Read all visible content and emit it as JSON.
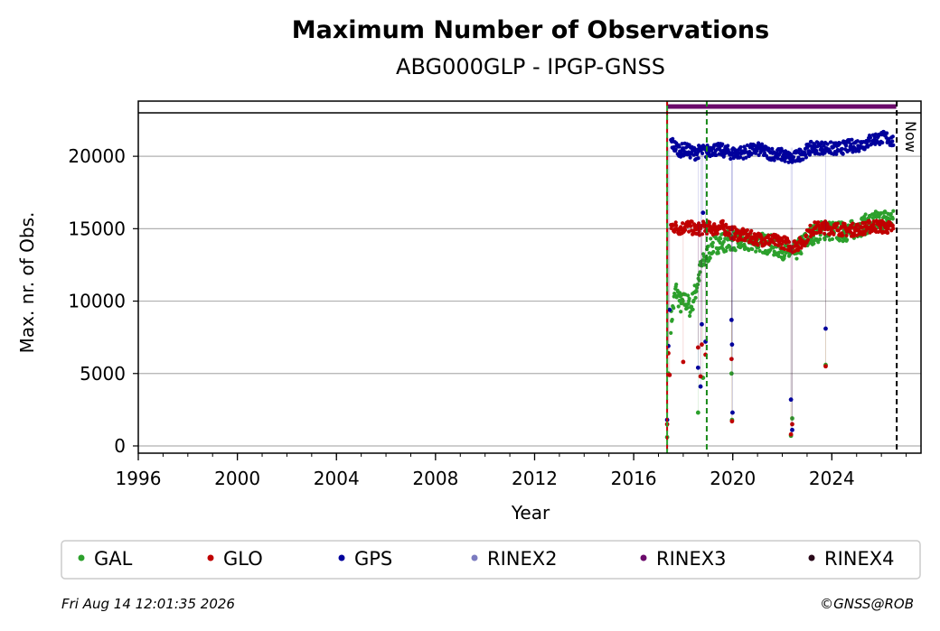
{
  "chart_data": {
    "type": "scatter",
    "title": "Maximum Number of Observations",
    "subtitle": "ABG000GLP - IPGP-GNSS",
    "xlabel": "Year",
    "ylabel": "Max. nr. of Obs.",
    "xlim": [
      1996,
      2027.6
    ],
    "ylim": [
      -500,
      23000
    ],
    "x_ticks": [
      1996,
      2000,
      2004,
      2008,
      2012,
      2016,
      2020,
      2024
    ],
    "y_ticks": [
      0,
      5000,
      10000,
      15000,
      20000
    ],
    "grid": "horizontal",
    "legend_position": "bottom",
    "markers": {
      "station_start": 2017.35,
      "equipment_change": 2018.95,
      "now": 2026.62,
      "now_label": "Now"
    },
    "rinex3_span": [
      2017.35,
      2026.6
    ],
    "series": [
      {
        "name": "GAL",
        "color": "#2ca02c",
        "x": [
          2017.35,
          2017.5,
          2017.7,
          2017.9,
          2018.1,
          2018.3,
          2018.5,
          2018.7,
          2018.9,
          2019.2,
          2019.6,
          2020.0,
          2020.5,
          2021.0,
          2021.5,
          2022.0,
          2022.4,
          2022.8,
          2023.2,
          2023.7,
          2024.2,
          2024.7,
          2025.2,
          2025.7,
          2026.2,
          2026.5
        ],
        "y": [
          600,
          8500,
          10800,
          9800,
          10000,
          9500,
          10700,
          12200,
          13000,
          13900,
          14100,
          14200,
          14000,
          14100,
          13900,
          13600,
          13200,
          13900,
          14600,
          14900,
          14800,
          14800,
          15200,
          15500,
          15700,
          15600
        ]
      },
      {
        "name": "GLO",
        "color": "#c00000",
        "x": [
          2017.35,
          2017.5,
          2017.7,
          2017.9,
          2018.1,
          2018.3,
          2018.5,
          2018.7,
          2018.9,
          2019.2,
          2019.6,
          2020.0,
          2020.5,
          2021.0,
          2021.5,
          2022.0,
          2022.4,
          2022.8,
          2023.2,
          2023.7,
          2024.2,
          2024.7,
          2025.2,
          2025.7,
          2026.2,
          2026.5
        ],
        "y": [
          1500,
          15200,
          15100,
          15000,
          15200,
          15100,
          14900,
          15000,
          15100,
          15000,
          15100,
          14700,
          14500,
          14300,
          14200,
          14100,
          13800,
          14000,
          15000,
          15100,
          15000,
          14900,
          15000,
          15200,
          15100,
          15000
        ]
      },
      {
        "name": "GPS",
        "color": "#00009c",
        "x": [
          2017.35,
          2017.5,
          2017.7,
          2017.9,
          2018.1,
          2018.3,
          2018.5,
          2018.7,
          2018.9,
          2019.2,
          2019.6,
          2020.0,
          2020.5,
          2021.0,
          2021.5,
          2022.0,
          2022.4,
          2022.8,
          2023.2,
          2023.7,
          2024.2,
          2024.7,
          2025.2,
          2025.7,
          2026.2,
          2026.5
        ],
        "y": [
          1800,
          21000,
          20600,
          20400,
          20500,
          20300,
          20200,
          20400,
          20300,
          20500,
          20400,
          20200,
          20300,
          20500,
          20200,
          20100,
          19800,
          20200,
          20600,
          20600,
          20500,
          20700,
          20800,
          21200,
          21300,
          21000
        ]
      },
      {
        "name": "RINEX2",
        "color": "#7b7bc0",
        "x": [],
        "y": []
      },
      {
        "name": "RINEX3",
        "color": "#6b0a6b",
        "x": [],
        "y": []
      },
      {
        "name": "RINEX4",
        "color": "#2a0a1a",
        "x": [],
        "y": []
      }
    ],
    "outliers": {
      "GAL": [
        [
          2017.4,
          5000
        ],
        [
          2018.6,
          2300
        ],
        [
          2018.8,
          4700
        ],
        [
          2019.95,
          5000
        ],
        [
          2019.97,
          1800
        ],
        [
          2022.35,
          700
        ],
        [
          2022.4,
          1900
        ],
        [
          2023.75,
          5600
        ]
      ],
      "GLO": [
        [
          2017.4,
          6400
        ],
        [
          2017.45,
          4900
        ],
        [
          2018.0,
          5800
        ],
        [
          2018.6,
          6800
        ],
        [
          2018.7,
          4800
        ],
        [
          2018.75,
          7000
        ],
        [
          2018.9,
          6300
        ],
        [
          2019.95,
          6000
        ],
        [
          2019.97,
          1700
        ],
        [
          2022.35,
          800
        ],
        [
          2022.4,
          1500
        ],
        [
          2023.75,
          5500
        ]
      ],
      "GPS": [
        [
          2017.4,
          6900
        ],
        [
          2017.45,
          9400
        ],
        [
          2018.6,
          5400
        ],
        [
          2018.7,
          4100
        ],
        [
          2018.75,
          8400
        ],
        [
          2018.8,
          16100
        ],
        [
          2018.9,
          7200
        ],
        [
          2019.95,
          8700
        ],
        [
          2019.97,
          7000
        ],
        [
          2019.99,
          2300
        ],
        [
          2022.35,
          3200
        ],
        [
          2022.4,
          1100
        ],
        [
          2023.75,
          8100
        ]
      ]
    }
  },
  "footer": {
    "timestamp": "Fri Aug 14 12:01:35 2026",
    "copyright": "©GNSS@ROB"
  }
}
